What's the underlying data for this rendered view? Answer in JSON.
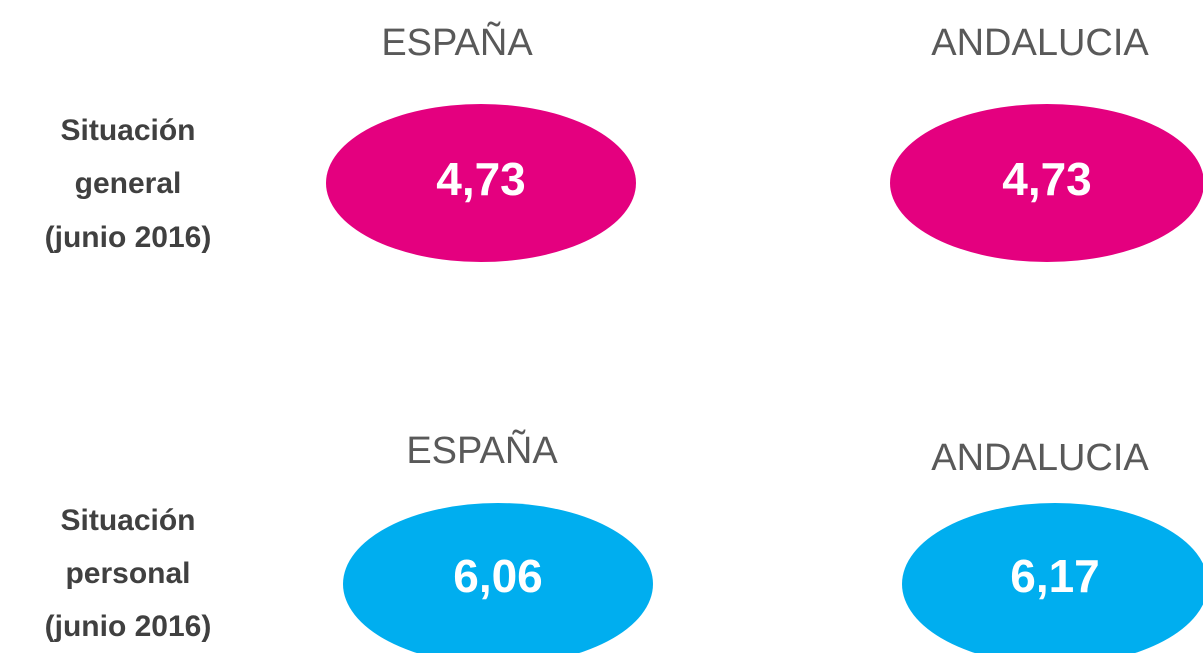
{
  "rows": [
    {
      "label": [
        "Situación",
        "general",
        "(junio 2016)"
      ],
      "cells": [
        {
          "region": "ESPAÑA",
          "value": "4,73"
        },
        {
          "region": "ANDALUCIA",
          "value": "4,73"
        }
      ]
    },
    {
      "label": [
        "Situación",
        "personal",
        "(junio 2016)"
      ],
      "cells": [
        {
          "region": "ESPAÑA",
          "value": "6,06"
        },
        {
          "region": "ANDALUCIA",
          "value": "6,17"
        }
      ]
    }
  ]
}
